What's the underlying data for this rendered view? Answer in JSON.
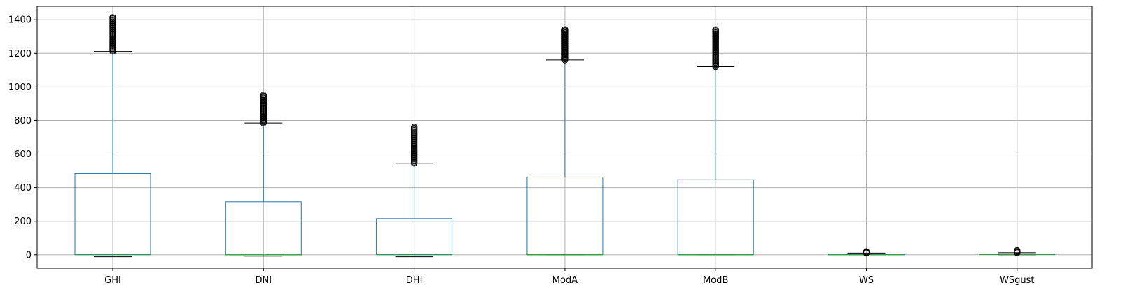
{
  "chart_data": {
    "type": "boxplot",
    "title": "",
    "xlabel": "",
    "ylabel": "",
    "grid": true,
    "legend": "none",
    "ylim": [
      -80,
      1480
    ],
    "yticks": [
      0,
      200,
      400,
      600,
      800,
      1000,
      1200,
      1400
    ],
    "categories": [
      "GHI",
      "DNI",
      "DHI",
      "ModA",
      "ModB",
      "WS",
      "WSgust"
    ],
    "boxes": [
      {
        "label": "GHI",
        "whislo": -12,
        "q1": 0,
        "median": 2,
        "q3": 484,
        "whishi": 1211,
        "fliers_min": 1211,
        "fliers_max": 1413
      },
      {
        "label": "DNI",
        "whislo": -8,
        "q1": -1,
        "median": 0,
        "q3": 316,
        "whishi": 785,
        "fliers_min": 785,
        "fliers_max": 952
      },
      {
        "label": "DHI",
        "whislo": -12,
        "q1": 0,
        "median": 2,
        "q3": 216,
        "whishi": 545,
        "fliers_min": 545,
        "fliers_max": 760
      },
      {
        "label": "ModA",
        "whislo": 0,
        "q1": 0,
        "median": 0,
        "q3": 463,
        "whishi": 1160,
        "fliers_min": 1160,
        "fliers_max": 1342
      },
      {
        "label": "ModB",
        "whislo": 0,
        "q1": 0,
        "median": 0,
        "q3": 447,
        "whishi": 1120,
        "fliers_min": 1120,
        "fliers_max": 1342
      },
      {
        "label": "WS",
        "whislo": 0,
        "q1": 0,
        "median": 1,
        "q3": 4,
        "whishi": 10,
        "fliers_min": 10,
        "fliers_max": 19
      },
      {
        "label": "WSgust",
        "whislo": 0,
        "q1": 1,
        "median": 2,
        "q3": 5,
        "whishi": 12,
        "fliers_min": 12,
        "fliers_max": 26
      }
    ],
    "colors": {
      "box": "#1f77b4",
      "median": "#2ca02c",
      "whisker_cap": "#000000",
      "flier": "#000000",
      "grid": "#b0b0b0"
    }
  }
}
